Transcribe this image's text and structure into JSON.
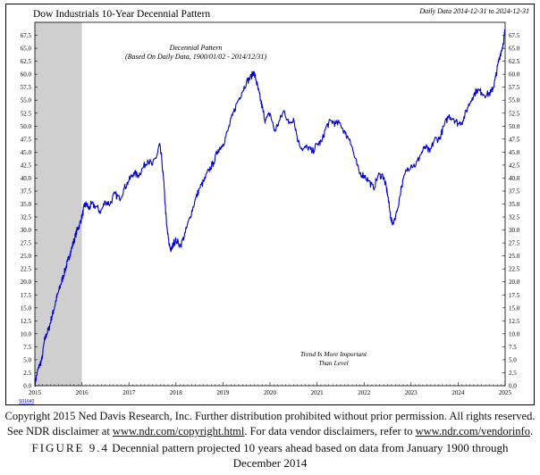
{
  "chart_data": {
    "type": "line",
    "title": "Dow Industrials 10-Year Decennial Pattern",
    "date_range": "Daily Data 2014-12-31 to 2024-12-31",
    "subtitle": "Decennial Pattern",
    "subtitle_note": "(Based On Daily Data, 1900/01/02 - 2014/12/31)",
    "annotation_line1": "Trend Is More Important",
    "annotation_line2": "Than Level",
    "chart_code": "S01640",
    "shaded_region": {
      "from": 2015.0,
      "to": 2016.0
    },
    "xlim": [
      2015.0,
      2025.0
    ],
    "ylim": [
      0,
      70
    ],
    "x_ticks": [
      "2015",
      "2016",
      "2017",
      "2018",
      "2019",
      "2020",
      "2021",
      "2022",
      "2023",
      "2024",
      "2025"
    ],
    "y_ticks": [
      "0.0",
      "2.5",
      "5.0",
      "7.5",
      "10.0",
      "12.5",
      "15.0",
      "17.5",
      "20.0",
      "22.5",
      "25.0",
      "27.5",
      "30.0",
      "32.5",
      "35.0",
      "37.5",
      "40.0",
      "42.5",
      "45.0",
      "47.5",
      "50.0",
      "52.5",
      "55.0",
      "57.5",
      "60.0",
      "62.5",
      "65.0",
      "67.5"
    ],
    "line_color": "#0000cc",
    "shade_color": "#cfcfcf",
    "series": [
      {
        "name": "Decennial Pattern",
        "x": [
          2015.0,
          2015.05,
          2015.1,
          2015.15,
          2015.2,
          2015.25,
          2015.3,
          2015.35,
          2015.4,
          2015.45,
          2015.5,
          2015.55,
          2015.6,
          2015.65,
          2015.7,
          2015.75,
          2015.8,
          2015.85,
          2015.9,
          2015.95,
          2016.0,
          2016.05,
          2016.1,
          2016.15,
          2016.2,
          2016.3,
          2016.4,
          2016.5,
          2016.6,
          2016.7,
          2016.8,
          2016.9,
          2017.0,
          2017.1,
          2017.2,
          2017.3,
          2017.4,
          2017.5,
          2017.6,
          2017.65,
          2017.7,
          2017.75,
          2017.8,
          2017.85,
          2017.9,
          2017.95,
          2018.0,
          2018.1,
          2018.2,
          2018.3,
          2018.4,
          2018.5,
          2018.6,
          2018.7,
          2018.8,
          2018.9,
          2019.0,
          2019.1,
          2019.2,
          2019.3,
          2019.4,
          2019.5,
          2019.6,
          2019.65,
          2019.7,
          2019.75,
          2019.8,
          2019.85,
          2019.9,
          2020.0,
          2020.1,
          2020.2,
          2020.3,
          2020.4,
          2020.5,
          2020.6,
          2020.7,
          2020.8,
          2020.9,
          2021.0,
          2021.1,
          2021.2,
          2021.3,
          2021.4,
          2021.5,
          2021.6,
          2021.7,
          2021.8,
          2021.9,
          2022.0,
          2022.1,
          2022.2,
          2022.3,
          2022.4,
          2022.45,
          2022.5,
          2022.55,
          2022.6,
          2022.7,
          2022.8,
          2022.9,
          2023.0,
          2023.1,
          2023.2,
          2023.3,
          2023.4,
          2023.5,
          2023.6,
          2023.7,
          2023.8,
          2023.9,
          2024.0,
          2024.1,
          2024.2,
          2024.3,
          2024.4,
          2024.5,
          2024.6,
          2024.7,
          2024.75,
          2024.8,
          2024.85,
          2024.9,
          2024.95,
          2025.0
        ],
        "y": [
          0.3,
          2.5,
          4.0,
          5.0,
          8.5,
          10.0,
          11.0,
          13.0,
          14.5,
          16.5,
          18.0,
          19.5,
          21.0,
          22.5,
          24.0,
          25.5,
          27.0,
          28.5,
          30.0,
          31.0,
          32.5,
          34.5,
          35.0,
          34.0,
          35.0,
          34.5,
          33.5,
          35.5,
          35.0,
          37.0,
          36.0,
          38.0,
          39.5,
          41.0,
          40.5,
          42.0,
          43.5,
          42.5,
          44.5,
          46.5,
          43.5,
          38.0,
          31.0,
          27.5,
          26.0,
          27.5,
          28.0,
          27.0,
          29.5,
          32.5,
          35.5,
          38.0,
          39.5,
          41.5,
          43.0,
          45.5,
          46.5,
          49.0,
          52.0,
          54.5,
          56.5,
          58.5,
          59.5,
          60.5,
          59.0,
          57.0,
          55.0,
          53.0,
          51.0,
          52.5,
          49.0,
          51.0,
          53.0,
          50.5,
          51.5,
          47.0,
          45.5,
          46.0,
          45.0,
          46.5,
          47.0,
          50.0,
          51.0,
          50.5,
          50.5,
          48.5,
          47.5,
          44.0,
          41.0,
          40.5,
          39.5,
          38.0,
          40.5,
          40.5,
          39.0,
          37.0,
          33.5,
          31.0,
          33.5,
          38.5,
          41.5,
          42.5,
          42.5,
          44.5,
          46.0,
          45.0,
          47.5,
          47.5,
          50.0,
          52.0,
          51.5,
          50.5,
          51.0,
          53.5,
          55.5,
          57.0,
          56.5,
          56.0,
          56.5,
          57.5,
          59.5,
          62.0,
          64.0,
          65.5,
          68.5
        ]
      }
    ]
  },
  "captions": {
    "copyright": "Copyright 2015 Ned Davis Research, Inc. Further distribution prohibited without prior permission. All rights reserved.",
    "disclaimer_prefix": "See NDR disclaimer at ",
    "disclaimer_link1": "www.ndr.com/copyright.html",
    "disclaimer_middle": ". For data vendor disclaimers, refer to ",
    "disclaimer_link2": "www.ndr.com/vendorinfo",
    "disclaimer_suffix": ".",
    "figure_label": "FIGURE 9.4",
    "figure_text": " Decennial pattern projected 10 years ahead based on data from January 1900 through",
    "figure_text_line2": "December 2014"
  }
}
